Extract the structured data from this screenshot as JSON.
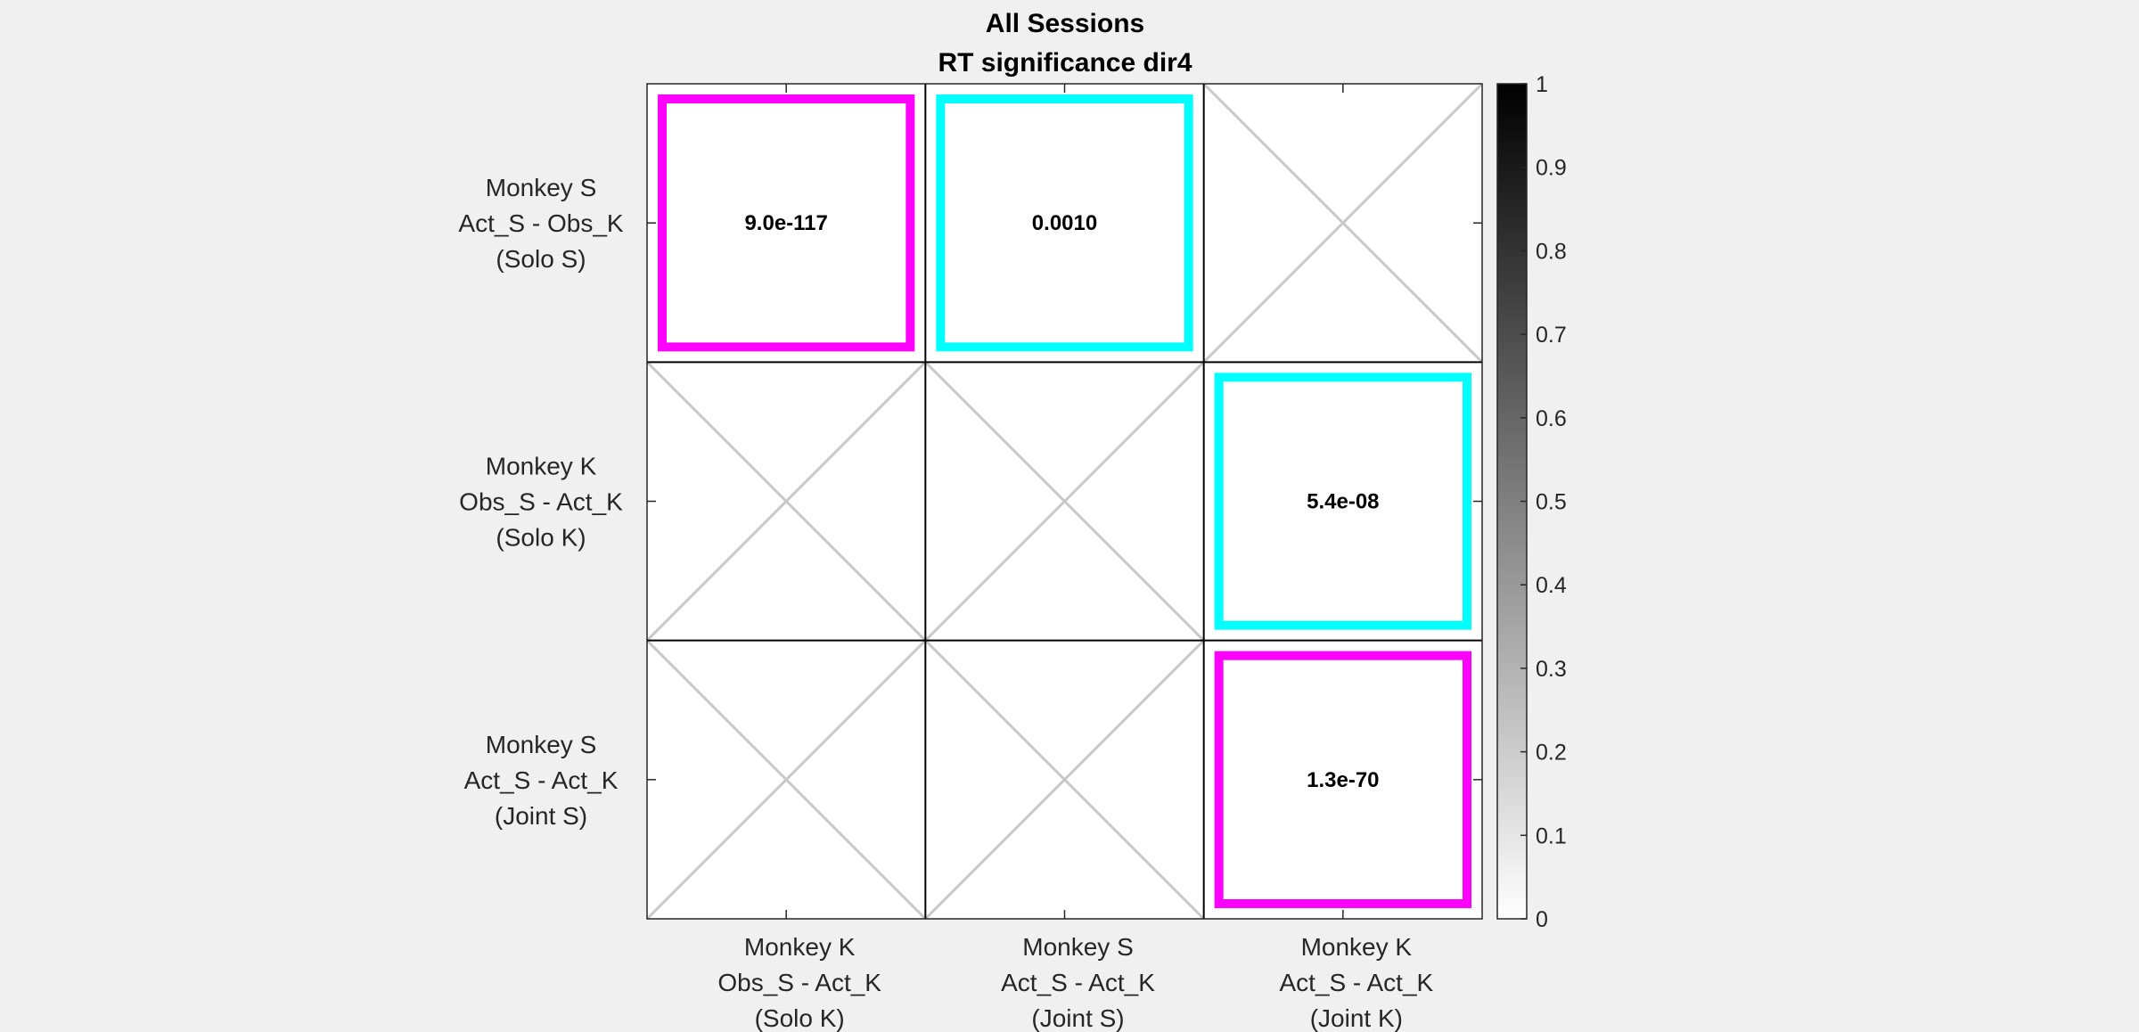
{
  "chart_data": {
    "type": "heatmap",
    "title": [
      "All Sessions",
      "RT significance dir4"
    ],
    "row_labels": [
      [
        "Monkey S",
        "Act_S - Obs_K",
        "(Solo S)"
      ],
      [
        "Monkey K",
        "Obs_S - Act_K",
        "(Solo K)"
      ],
      [
        "Monkey S",
        "Act_S - Act_K",
        "(Joint S)"
      ]
    ],
    "col_labels": [
      [
        "Monkey K",
        "Obs_S - Act_K",
        "(Solo K)"
      ],
      [
        "Monkey S",
        "Act_S - Act_K",
        "(Joint S)"
      ],
      [
        "Monkey K",
        "Act_S - Act_K",
        "(Joint K)"
      ]
    ],
    "values": [
      [
        "9.0e-117",
        "0.0010",
        null
      ],
      [
        null,
        null,
        "5.4e-08"
      ],
      [
        null,
        null,
        "1.3e-70"
      ]
    ],
    "highlight": [
      [
        "magenta",
        "cyan",
        null
      ],
      [
        null,
        null,
        "cyan"
      ],
      [
        null,
        null,
        "magenta"
      ]
    ],
    "colors": {
      "magenta": "#ff00ff",
      "cyan": "#00ffff",
      "empty_cross": "#c8c8c8"
    },
    "colorbar": {
      "range": [
        0,
        1
      ],
      "ticks": [
        "0",
        "0.1",
        "0.2",
        "0.3",
        "0.4",
        "0.5",
        "0.6",
        "0.7",
        "0.8",
        "0.9",
        "1"
      ]
    }
  }
}
